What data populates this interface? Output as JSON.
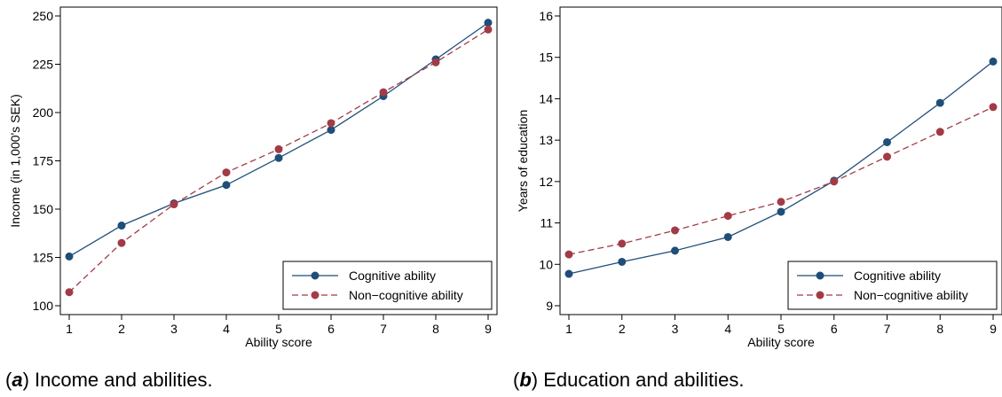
{
  "colors": {
    "cognitive": "#1f4e79",
    "noncognitive": "#a23b46"
  },
  "chart_data": [
    {
      "type": "line",
      "xlabel": "Ability score",
      "ylabel": "Income (in 1,000's SEK)",
      "xlim": [
        1,
        9
      ],
      "ylim": [
        100,
        250
      ],
      "yticks": [
        100,
        125,
        150,
        175,
        200,
        225,
        250
      ],
      "xticks": [
        1,
        2,
        3,
        4,
        5,
        6,
        7,
        8,
        9
      ],
      "legend_position": "bottom-right",
      "x": [
        1,
        2,
        3,
        4,
        5,
        6,
        7,
        8,
        9
      ],
      "series": [
        {
          "name": "Cognitive ability",
          "values": [
            125.5,
            141.5,
            153,
            162.5,
            176.5,
            191,
            208.5,
            227.5,
            246.5
          ]
        },
        {
          "name": "Non−cognitive ability",
          "values": [
            107,
            132.5,
            152.5,
            169,
            181,
            194.5,
            210.5,
            226,
            243
          ]
        }
      ]
    },
    {
      "type": "line",
      "xlabel": "Ability score",
      "ylabel": "Years of education",
      "xlim": [
        1,
        9
      ],
      "ylim": [
        9,
        16
      ],
      "yticks": [
        9,
        10,
        11,
        12,
        13,
        14,
        15,
        16
      ],
      "xticks": [
        1,
        2,
        3,
        4,
        5,
        6,
        7,
        8,
        9
      ],
      "legend_position": "bottom-right",
      "x": [
        1,
        2,
        3,
        4,
        5,
        6,
        7,
        8,
        9
      ],
      "series": [
        {
          "name": "Cognitive ability",
          "values": [
            9.77,
            10.06,
            10.33,
            10.66,
            11.27,
            12.02,
            12.95,
            13.9,
            14.9
          ]
        },
        {
          "name": "Non−cognitive ability",
          "values": [
            10.24,
            10.5,
            10.82,
            11.17,
            11.51,
            12.0,
            12.6,
            13.2,
            13.8
          ]
        }
      ]
    }
  ],
  "captions": [
    {
      "letter": "a",
      "text": " Income and abilities."
    },
    {
      "letter": "b",
      "text": " Education and abilities."
    }
  ]
}
